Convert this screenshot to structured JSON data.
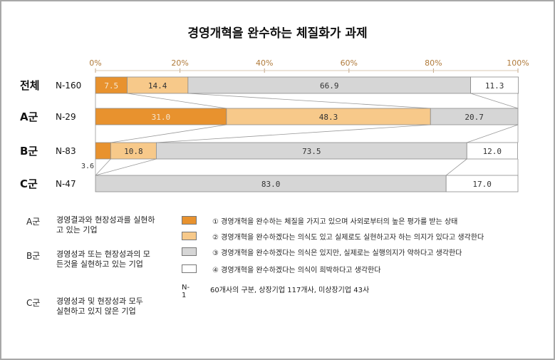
{
  "title": "경영개혁을 완수하는 체질화가 과제",
  "chart_data": {
    "type": "bar",
    "stacked": "100%",
    "title": "경영개혁을 완수하는 체질화가 과제",
    "x_ticks": [
      "0%",
      "20%",
      "40%",
      "60%",
      "80%",
      "100%"
    ],
    "xlim": [
      0,
      100
    ],
    "rows": [
      {
        "label": "전체",
        "n": "N-160",
        "values": [
          7.5,
          14.4,
          66.9,
          11.3
        ],
        "labels": [
          "7.5",
          "14.4",
          "66.9",
          "11.3"
        ]
      },
      {
        "label": "A군",
        "n": "N-29",
        "values": [
          31.0,
          48.3,
          20.7,
          0
        ],
        "labels": [
          "31.0",
          "48.3",
          "20.7",
          ""
        ]
      },
      {
        "label": "B군",
        "n": "N-83",
        "values": [
          3.6,
          10.8,
          73.5,
          12.0
        ],
        "labels": [
          "3.6",
          "10.8",
          "73.5",
          "12.0"
        ]
      },
      {
        "label": "C군",
        "n": "N-47",
        "values": [
          0,
          0,
          83.0,
          17.0
        ],
        "labels": [
          "",
          "",
          "83.0",
          "17.0"
        ]
      }
    ],
    "colors": [
      "#e8922e",
      "#f7c98a",
      "#d6d6d6",
      "#ffffff"
    ]
  },
  "groups": [
    {
      "name": "A군",
      "desc": "경영결과와 현장성과를 실현하고 있는 기업"
    },
    {
      "name": "B군",
      "desc": "경영성과 또는 현장성과의 모든것을 실현하고 있는 기업"
    },
    {
      "name": "C군",
      "desc": "경영성과 및 현장성과 모두 실현하고 있지 않은 기업"
    }
  ],
  "legend": [
    {
      "text": "① 경영개혁을 완수하는 체질을 가지고 있으며 사외로부터의 높은 평가를 받는 상태",
      "color": "#e8922e"
    },
    {
      "text": "② 경영개혁을 완수하겠다는 의식도 있고 실제로도 실현하고자 하는 의지가 있다고 생각한다",
      "color": "#f7c98a"
    },
    {
      "text": "③ 경영개혁을 완수하겠다는 의식은 있지만, 실제로는 실행의지가 약하다고 생각한다",
      "color": "#d6d6d6"
    },
    {
      "text": "④ 경영개혁을 완수하겠다는 의식이 희박하다고 생각한다",
      "color": "#ffffff"
    }
  ],
  "note": {
    "key": "N-1",
    "text": "60개사의 구분, 상장기업 117개사, 미상장기업 43사"
  }
}
